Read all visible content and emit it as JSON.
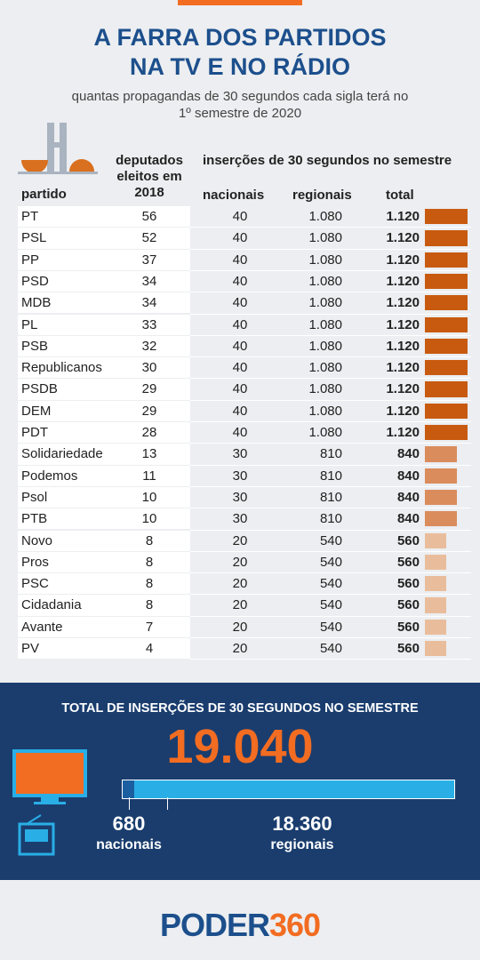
{
  "chart_data": {
    "type": "bar",
    "title": "A FARRA DOS PARTIDOS NA TV E NO RÁDIO",
    "subtitle": "quantas propagandas de 30 segundos cada sigla terá no 1º semestre de 2020",
    "category_header": "partido",
    "group_header": "inserções de 30 segundos no semestre",
    "categories": [
      "PT",
      "PSL",
      "PP",
      "PSD",
      "MDB",
      "PL",
      "PSB",
      "Republicanos",
      "PSDB",
      "DEM",
      "PDT",
      "Solidariedade",
      "Podemos",
      "Psol",
      "PTB",
      "Novo",
      "Pros",
      "PSC",
      "Cidadania",
      "Avante",
      "PV"
    ],
    "series": [
      {
        "name": "deputados eleitos em 2018",
        "values": [
          56,
          52,
          37,
          34,
          34,
          33,
          32,
          30,
          29,
          29,
          28,
          13,
          11,
          10,
          10,
          8,
          8,
          8,
          8,
          7,
          4
        ]
      },
      {
        "name": "nacionais",
        "values": [
          40,
          40,
          40,
          40,
          40,
          40,
          40,
          40,
          40,
          40,
          40,
          30,
          30,
          30,
          30,
          20,
          20,
          20,
          20,
          20,
          20
        ]
      },
      {
        "name": "regionais",
        "values": [
          1080,
          1080,
          1080,
          1080,
          1080,
          1080,
          1080,
          1080,
          1080,
          1080,
          1080,
          810,
          810,
          810,
          810,
          540,
          540,
          540,
          540,
          540,
          540
        ],
        "value_labels": [
          "1.080",
          "1.080",
          "1.080",
          "1.080",
          "1.080",
          "1.080",
          "1.080",
          "1.080",
          "1.080",
          "1.080",
          "1.080",
          "810",
          "810",
          "810",
          "810",
          "540",
          "540",
          "540",
          "540",
          "540",
          "540"
        ]
      },
      {
        "name": "total",
        "values": [
          1120,
          1120,
          1120,
          1120,
          1120,
          1120,
          1120,
          1120,
          1120,
          1120,
          1120,
          840,
          840,
          840,
          840,
          560,
          560,
          560,
          560,
          560,
          560
        ],
        "value_labels": [
          "1.120",
          "1.120",
          "1.120",
          "1.120",
          "1.120",
          "1.120",
          "1.120",
          "1.120",
          "1.120",
          "1.120",
          "1.120",
          "840",
          "840",
          "840",
          "840",
          "560",
          "560",
          "560",
          "560",
          "560",
          "560"
        ],
        "colors": [
          "#c85a10",
          "#c85a10",
          "#c85a10",
          "#c85a10",
          "#c85a10",
          "#c85a10",
          "#c85a10",
          "#c85a10",
          "#c85a10",
          "#c85a10",
          "#c85a10",
          "#da8c5c",
          "#da8c5c",
          "#da8c5c",
          "#da8c5c",
          "#e9bd9c",
          "#e9bd9c",
          "#e9bd9c",
          "#e9bd9c",
          "#e9bd9c",
          "#e9bd9c"
        ]
      }
    ],
    "summary": {
      "title": "TOTAL DE INSERÇÕES DE 30 SEGUNDOS NO SEMESTRE",
      "total": 19040,
      "total_label": "19.040",
      "parts": [
        {
          "name": "nacionais",
          "value": 680,
          "value_label": "680",
          "color": "#1c5fa0"
        },
        {
          "name": "regionais",
          "value": 18360,
          "value_label": "18.360",
          "color": "#29aee6"
        }
      ]
    },
    "logo": {
      "left": "PODER",
      "right": "360"
    }
  }
}
